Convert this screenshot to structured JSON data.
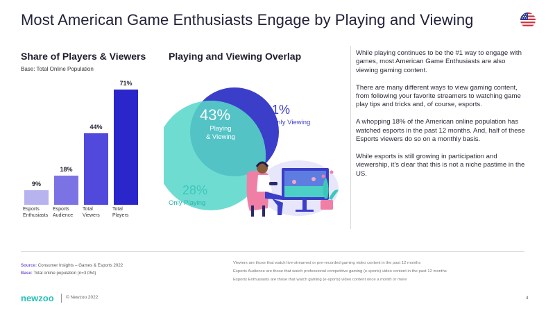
{
  "header": {
    "title": "Most American Game Enthusiasts Engage by Playing and Viewing",
    "flag_icon": "us-flag-icon"
  },
  "left_section": {
    "title": "Share of Players & Viewers",
    "base": "Base: Total Online Population"
  },
  "venn_section": {
    "title": "Playing and Viewing Overlap",
    "overlap_value": "43%",
    "overlap_label_1": "Playing",
    "overlap_label_2": "& Viewing",
    "viewing_only_value": "1%",
    "viewing_only_label": "Only Viewing",
    "playing_only_value": "28%",
    "playing_only_label": "Only Playing",
    "colors": {
      "playing": "#6fdcd2",
      "viewing": "#3b3ec9",
      "overlap": "#53c3c6"
    }
  },
  "chart_data": {
    "type": "bar",
    "categories": [
      "Esports Enthusiasts",
      "Esports Audience",
      "Total Viewers",
      "Total Players"
    ],
    "category_lines": [
      [
        "Esports",
        "Enthusiasts"
      ],
      [
        "Esports",
        "Audience"
      ],
      [
        "Total",
        "Viewers"
      ],
      [
        "Total",
        "Players"
      ]
    ],
    "values": [
      9,
      18,
      44,
      71
    ],
    "value_labels": [
      "9%",
      "18%",
      "44%",
      "71%"
    ],
    "colors": [
      "#b7b3ef",
      "#7b73e4",
      "#5049dc",
      "#2b26c9"
    ],
    "ylim": [
      0,
      71
    ],
    "grid": false
  },
  "body_text": {
    "paragraphs": [
      "While playing continues to be the #1 way to engage with games, most American Game Enthusiasts are also viewing gaming content.",
      "There are many different ways to view gaming content, from following your favorite streamers to watching game play tips and tricks and, of course, esports.",
      "A whopping 18% of the American online population has watched esports in the past 12 months. And, half of these Esports viewers do so on a monthly basis.",
      "While esports is still growing in participation and viewership, it's clear that this is not a niche pastime in the US."
    ]
  },
  "footer": {
    "source_label": "Source:",
    "source_text": "Consumer Insights – Games & Esports 2022",
    "base_label": "Base:",
    "base_text": "Total online population (n=3,054)",
    "notes": [
      "Viewers are those that watch live-streamed or pre-recorded gaming video content in the past 12 months",
      "Esports Audience are those that watch professional competitive gaming (e-sports) video content in the past 12 months",
      "Esports Enthusiasts are those that watch gaming (e-sports) video content once a month or more"
    ],
    "logo": "newzoo",
    "copyright": "© Newzoo 2022",
    "page_number": "4"
  }
}
